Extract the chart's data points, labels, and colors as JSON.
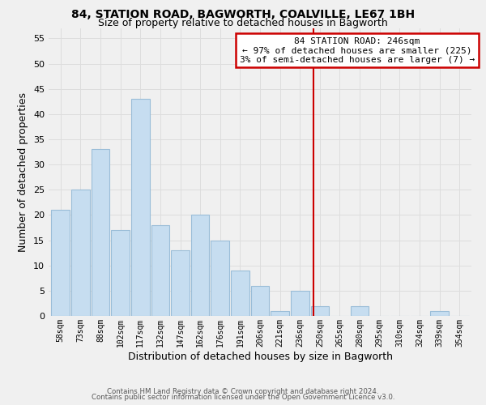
{
  "title": "84, STATION ROAD, BAGWORTH, COALVILLE, LE67 1BH",
  "subtitle": "Size of property relative to detached houses in Bagworth",
  "xlabel": "Distribution of detached houses by size in Bagworth",
  "ylabel": "Number of detached properties",
  "bar_color": "#c6ddf0",
  "bar_edge_color": "#9abdd8",
  "bin_labels": [
    "58sqm",
    "73sqm",
    "88sqm",
    "102sqm",
    "117sqm",
    "132sqm",
    "147sqm",
    "162sqm",
    "176sqm",
    "191sqm",
    "206sqm",
    "221sqm",
    "236sqm",
    "250sqm",
    "265sqm",
    "280sqm",
    "295sqm",
    "310sqm",
    "324sqm",
    "339sqm",
    "354sqm"
  ],
  "bar_heights": [
    21,
    25,
    33,
    17,
    43,
    18,
    13,
    20,
    15,
    9,
    6,
    1,
    5,
    2,
    0,
    2,
    0,
    0,
    0,
    1,
    0
  ],
  "vline_color": "#cc0000",
  "ylim": [
    0,
    57
  ],
  "yticks": [
    0,
    5,
    10,
    15,
    20,
    25,
    30,
    35,
    40,
    45,
    50,
    55
  ],
  "annotation_title": "84 STATION ROAD: 246sqm",
  "annotation_line1": "← 97% of detached houses are smaller (225)",
  "annotation_line2": "3% of semi-detached houses are larger (7) →",
  "footer_line1": "Contains HM Land Registry data © Crown copyright and database right 2024.",
  "footer_line2": "Contains public sector information licensed under the Open Government Licence v3.0.",
  "grid_color": "#dddddd",
  "background_color": "#f0f0f0"
}
